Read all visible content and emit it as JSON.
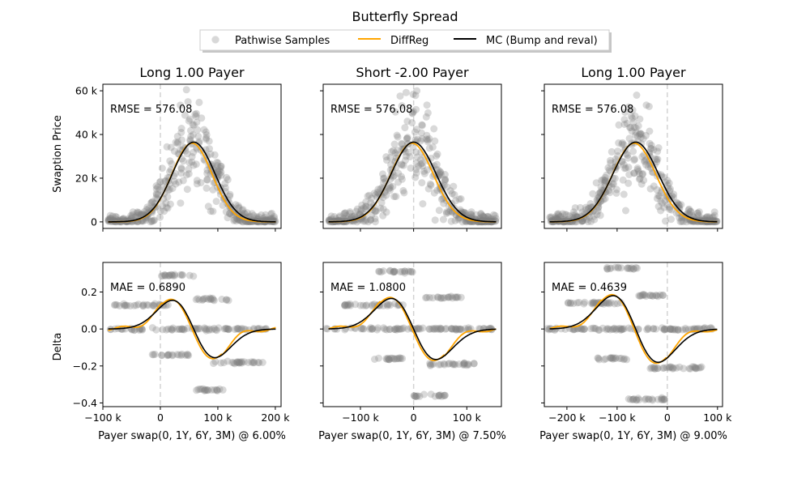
{
  "figure": {
    "title": "Butterfly Spread",
    "legend": {
      "placement": "top-center",
      "items": [
        {
          "label": "Pathwise Samples",
          "kind": "marker",
          "color": "#808080"
        },
        {
          "label": "DiffReg",
          "kind": "line",
          "color": "#FFA500"
        },
        {
          "label": "MC (Bump and reval)",
          "kind": "line",
          "color": "#000000"
        }
      ]
    },
    "row_ylabels": [
      "Swaption Price",
      "Delta"
    ],
    "colors": {
      "samples": "#808080",
      "diffreg": "#FFA500",
      "mc": "#000000",
      "vline": "#D3D3D3"
    }
  },
  "chart_data": [
    {
      "type": "scatter",
      "row": 0,
      "col": 0,
      "title": "Long 1.00 Payer",
      "annotation": "RMSE = 576.08",
      "xlim": [
        -100000,
        210000
      ],
      "xticks": [
        -100000,
        0,
        100000,
        200000
      ],
      "xtick_labels": [
        "",
        "",
        "",
        ""
      ],
      "ylim": [
        -3000,
        63000
      ],
      "yticks": [
        0,
        20000,
        40000,
        60000
      ],
      "ytick_labels": [
        "0",
        "20 k",
        "40 k",
        "60 k"
      ],
      "vline_x": 0,
      "samples_shape": "price",
      "samples_spread": 22000,
      "curve_mc": {
        "shape": "bell",
        "height": 36500,
        "center": 58000,
        "width": 37000
      },
      "curve_diffreg": {
        "shape": "bell",
        "height": 36000,
        "center": 55000,
        "width": 35000
      }
    },
    {
      "type": "scatter",
      "row": 0,
      "col": 1,
      "title": "Short -2.00 Payer",
      "annotation": "RMSE = 576.08",
      "xlim": [
        -170000,
        165000
      ],
      "xticks": [
        -100000,
        0,
        100000
      ],
      "xtick_labels": [
        "",
        "",
        ""
      ],
      "ylim": [
        -3000,
        63000
      ],
      "yticks": [
        0,
        20000,
        40000,
        60000
      ],
      "ytick_labels": [
        "",
        "",
        "",
        ""
      ],
      "vline_x": 0,
      "samples_shape": "price",
      "samples_spread": 22000,
      "curve_mc": {
        "shape": "bell",
        "height": 36500,
        "center": 0,
        "width": 42000
      },
      "curve_diffreg": {
        "shape": "bell",
        "height": 36000,
        "center": -3000,
        "width": 40000
      }
    },
    {
      "type": "scatter",
      "row": 0,
      "col": 2,
      "title": "Long 1.00 Payer",
      "annotation": "RMSE = 576.08",
      "xlim": [
        -245000,
        110000
      ],
      "xticks": [
        -200000,
        -100000,
        0,
        100000
      ],
      "xtick_labels": [
        "",
        "",
        "",
        ""
      ],
      "ylim": [
        -3000,
        63000
      ],
      "yticks": [
        0,
        20000,
        40000,
        60000
      ],
      "ytick_labels": [
        "",
        "",
        "",
        ""
      ],
      "vline_x": 0,
      "samples_shape": "price",
      "samples_spread": 22000,
      "curve_mc": {
        "shape": "bell",
        "height": 36500,
        "center": -63000,
        "width": 45000
      },
      "curve_diffreg": {
        "shape": "bell",
        "height": 36000,
        "center": -66000,
        "width": 43000
      }
    },
    {
      "type": "scatter",
      "row": 1,
      "col": 0,
      "title": "",
      "annotation": "MAE = 0.6890",
      "xlabel": "Payer swap(0, 1Y, 6Y, 3M) @ 6.00%",
      "xlim": [
        -100000,
        210000
      ],
      "xticks": [
        -100000,
        0,
        100000,
        200000
      ],
      "xtick_labels": [
        "−100 k",
        "0",
        "100 k",
        "200 k"
      ],
      "ylim": [
        -0.42,
        0.36
      ],
      "yticks": [
        -0.4,
        -0.2,
        0.0,
        0.2
      ],
      "ytick_labels": [
        "−0.4",
        "−0.2",
        "0.0",
        "0.2"
      ],
      "vline_x": 0,
      "sample_bands": [
        {
          "x": [
            -95000,
            190000
          ],
          "y": 0.0
        },
        {
          "x": [
            -80000,
            20000
          ],
          "y": 0.13
        },
        {
          "x": [
            0,
            60000
          ],
          "y": 0.29
        },
        {
          "x": [
            -15000,
            50000
          ],
          "y": -0.14
        },
        {
          "x": [
            60000,
            120000
          ],
          "y": 0.16
        },
        {
          "x": [
            90000,
            180000
          ],
          "y": -0.18
        },
        {
          "x": [
            60000,
            110000
          ],
          "y": -0.33
        }
      ],
      "curve_mc": {
        "shape": "delta",
        "amp": 0.155,
        "center": 58000,
        "width": 37000
      },
      "curve_diffreg": {
        "shape": "delta",
        "amp": 0.16,
        "center": 55000,
        "width": 35000,
        "wiggle": 0.012
      }
    },
    {
      "type": "scatter",
      "row": 1,
      "col": 1,
      "title": "",
      "annotation": "MAE = 1.0800",
      "xlabel": "Payer swap(0, 1Y, 6Y, 3M) @ 7.50%",
      "xlim": [
        -170000,
        165000
      ],
      "xticks": [
        -100000,
        0,
        100000
      ],
      "xtick_labels": [
        "−100 k",
        "0",
        "100 k"
      ],
      "ylim": [
        -0.42,
        0.36
      ],
      "yticks": [
        -0.4,
        -0.2,
        0.0,
        0.2
      ],
      "ytick_labels": [
        "",
        "",
        "",
        ""
      ],
      "vline_x": 0,
      "sample_bands": [
        {
          "x": [
            -165000,
            150000
          ],
          "y": 0.0
        },
        {
          "x": [
            -130000,
            -20000
          ],
          "y": 0.13
        },
        {
          "x": [
            -70000,
            0
          ],
          "y": 0.31
        },
        {
          "x": [
            -80000,
            -20000
          ],
          "y": -0.16
        },
        {
          "x": [
            20000,
            90000
          ],
          "y": 0.17
        },
        {
          "x": [
            30000,
            120000
          ],
          "y": -0.19
        },
        {
          "x": [
            0,
            60000
          ],
          "y": -0.36
        }
      ],
      "curve_mc": {
        "shape": "delta",
        "amp": 0.165,
        "center": 0,
        "width": 42000
      },
      "curve_diffreg": {
        "shape": "delta",
        "amp": 0.17,
        "center": -3000,
        "width": 40000,
        "wiggle": 0.012
      }
    },
    {
      "type": "scatter",
      "row": 1,
      "col": 2,
      "title": "",
      "annotation": "MAE = 0.4639",
      "xlabel": "Payer swap(0, 1Y, 6Y, 3M) @ 9.00%",
      "xlim": [
        -245000,
        110000
      ],
      "xticks": [
        -200000,
        -100000,
        0,
        100000
      ],
      "xtick_labels": [
        "−200 k",
        "−100 k",
        "0",
        "100 k"
      ],
      "ylim": [
        -0.42,
        0.36
      ],
      "yticks": [
        -0.4,
        -0.2,
        0.0,
        0.2
      ],
      "ytick_labels": [
        "",
        "",
        "",
        ""
      ],
      "vline_x": 0,
      "sample_bands": [
        {
          "x": [
            -240000,
            90000
          ],
          "y": 0.0
        },
        {
          "x": [
            -200000,
            -90000
          ],
          "y": 0.14
        },
        {
          "x": [
            -120000,
            -60000
          ],
          "y": 0.33
        },
        {
          "x": [
            -140000,
            -80000
          ],
          "y": -0.16
        },
        {
          "x": [
            -60000,
            0
          ],
          "y": 0.18
        },
        {
          "x": [
            -40000,
            70000
          ],
          "y": -0.21
        },
        {
          "x": [
            -80000,
            0
          ],
          "y": -0.38
        }
      ],
      "curve_mc": {
        "shape": "delta",
        "amp": 0.18,
        "center": -63000,
        "width": 45000
      },
      "curve_diffreg": {
        "shape": "delta",
        "amp": 0.185,
        "center": -66000,
        "width": 43000,
        "wiggle": 0.012
      }
    }
  ]
}
